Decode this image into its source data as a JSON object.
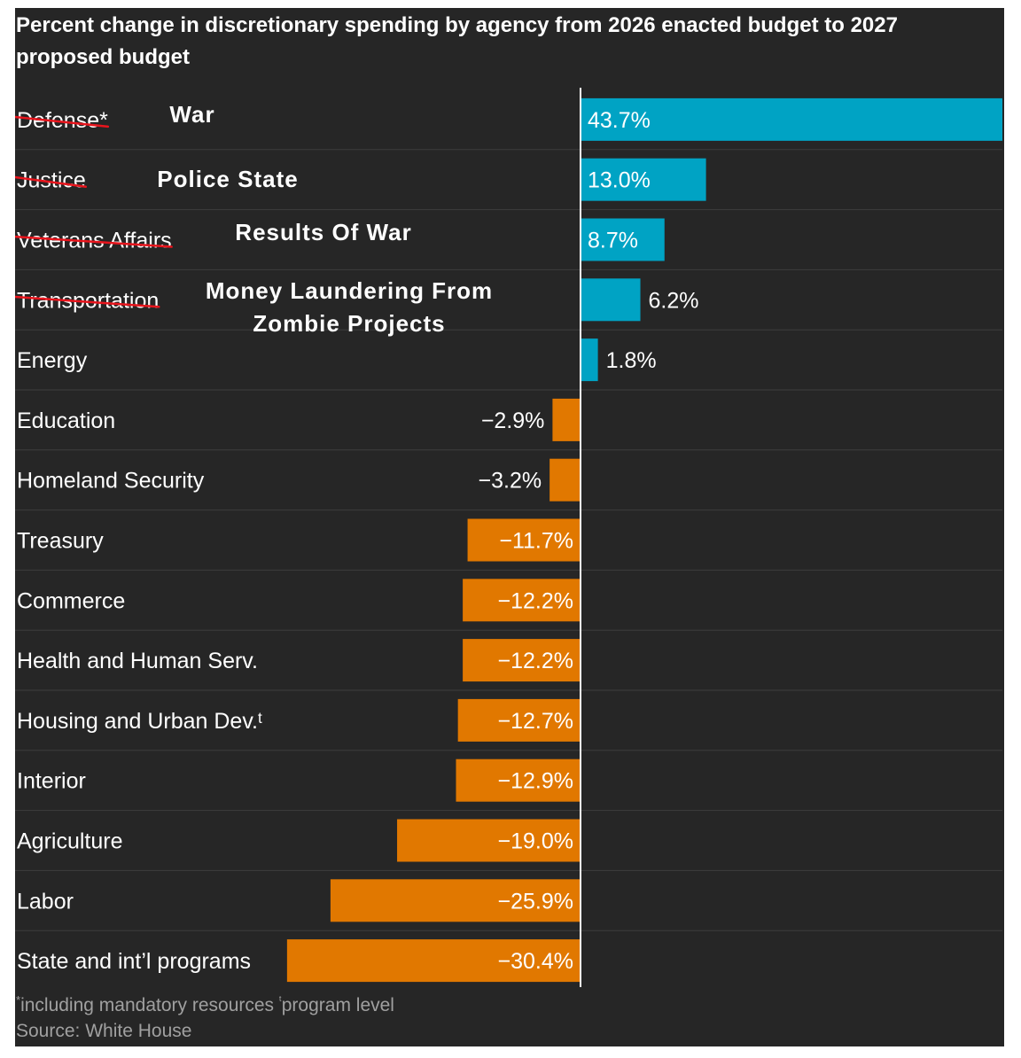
{
  "chart_data": {
    "type": "bar",
    "orientation": "horizontal",
    "title": "Percent change in discretionary spending by agency from 2026 enacted budget to 2027 proposed budget",
    "categories": [
      "Defense*",
      "Justice",
      "Veterans Affairs",
      "Transportation",
      "Energy",
      "Education",
      "Homeland Security",
      "Treasury",
      "Commerce",
      "Health and Human Serv.",
      "Housing and Urban Dev.ᵗ",
      "Interior",
      "Agriculture",
      "Labor",
      "State and int’l programs"
    ],
    "values": [
      43.7,
      13.0,
      8.7,
      6.2,
      1.8,
      -2.9,
      -3.2,
      -11.7,
      -12.2,
      -12.2,
      -12.7,
      -12.9,
      -19.0,
      -25.9,
      -30.4
    ],
    "value_labels": [
      "43.7%",
      "13.0%",
      "8.7%",
      "6.2%",
      "1.8%",
      "−2.9%",
      "−3.2%",
      "−11.7%",
      "−12.2%",
      "−12.2%",
      "−12.7%",
      "−12.9%",
      "−19.0%",
      "−25.9%",
      "−30.4%"
    ],
    "struck_through": [
      true,
      true,
      true,
      true,
      false,
      false,
      false,
      false,
      false,
      false,
      false,
      false,
      false,
      false,
      false
    ],
    "annotations": [
      {
        "category": "Defense*",
        "text": "War"
      },
      {
        "category": "Justice",
        "text": "Police State"
      },
      {
        "category": "Veterans Affairs",
        "text": "Results Of War"
      },
      {
        "category": "Transportation",
        "lines": [
          "Money Laundering From",
          "Zombie Projects"
        ]
      }
    ],
    "xlim": [
      -30.4,
      43.7
    ],
    "xlabel": "",
    "ylabel": "",
    "grid": false,
    "colors": {
      "positive": "#00a3c4",
      "negative": "#e17800",
      "background": "#262626",
      "text": "#ffffff",
      "muted": "#a0a0a0",
      "separator": "#3d3d3d",
      "axis": "#ffffff",
      "strike": "#e8141c"
    }
  },
  "footnote": {
    "mark1": "*",
    "text1": "including mandatory resources ",
    "mark2": "ᵗ",
    "text2": "program level"
  },
  "source": "Source: White House"
}
